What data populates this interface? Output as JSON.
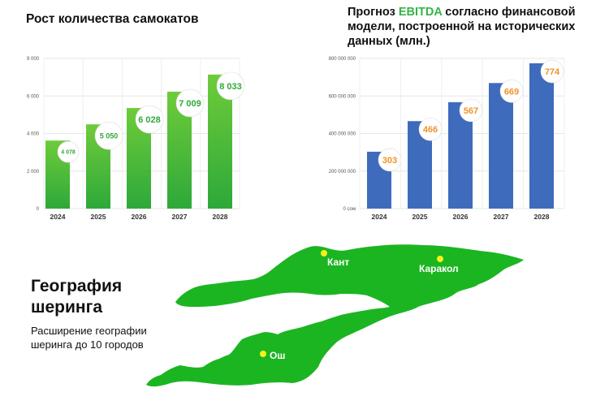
{
  "scooters": {
    "title": "Рост количества самокатов"
  },
  "ebitda": {
    "title_part1": "Прогноз ",
    "title_accent": "EBITDA",
    "title_part2": " согласно финансовой модели, построенной на исторических данных (млн.)"
  },
  "geo": {
    "title": "География шеринга",
    "subtitle": "Расширение географии шеринга до 10 городов"
  },
  "colors": {
    "green_bar_top": "#6ecc3a",
    "green_bar_bottom": "#2ea83a",
    "green_label": "#2ea83a",
    "blue_bar": "#3f6bbd",
    "orange_label": "#f0922b",
    "map_fill": "#1cb522",
    "city_dot": "#f4f21a",
    "title_accent": "#37b24a"
  },
  "chart_data": [
    {
      "type": "bar",
      "title": "Рост количества самокатов",
      "categories": [
        "2024",
        "2025",
        "2026",
        "2027",
        "2028"
      ],
      "values": [
        4078,
        5050,
        6028,
        7009,
        8033
      ],
      "value_labels": [
        "4 078",
        "5 050",
        "6 028",
        "7 009",
        "8 033"
      ],
      "yticks": [
        "0",
        "2 000",
        "4 000",
        "6 000",
        "9 000"
      ],
      "ylim": [
        0,
        9000
      ],
      "grid": true
    },
    {
      "type": "bar",
      "title": "Прогноз EBITDA согласно финансовой модели, построенной на исторических данных (млн.)",
      "categories": [
        "2024",
        "2025",
        "2026",
        "2027",
        "2028"
      ],
      "values": [
        303,
        466,
        567,
        669,
        774
      ],
      "value_labels": [
        "303",
        "466",
        "567",
        "669",
        "774"
      ],
      "yticks": [
        "0 сом",
        "200 000 000",
        "400 000 000",
        "600 000 000",
        "800 000 000"
      ],
      "ylim": [
        0,
        800
      ],
      "grid": true
    }
  ],
  "map": {
    "cities": [
      {
        "name": "Кант"
      },
      {
        "name": "Каракол"
      },
      {
        "name": "Ош"
      }
    ]
  }
}
